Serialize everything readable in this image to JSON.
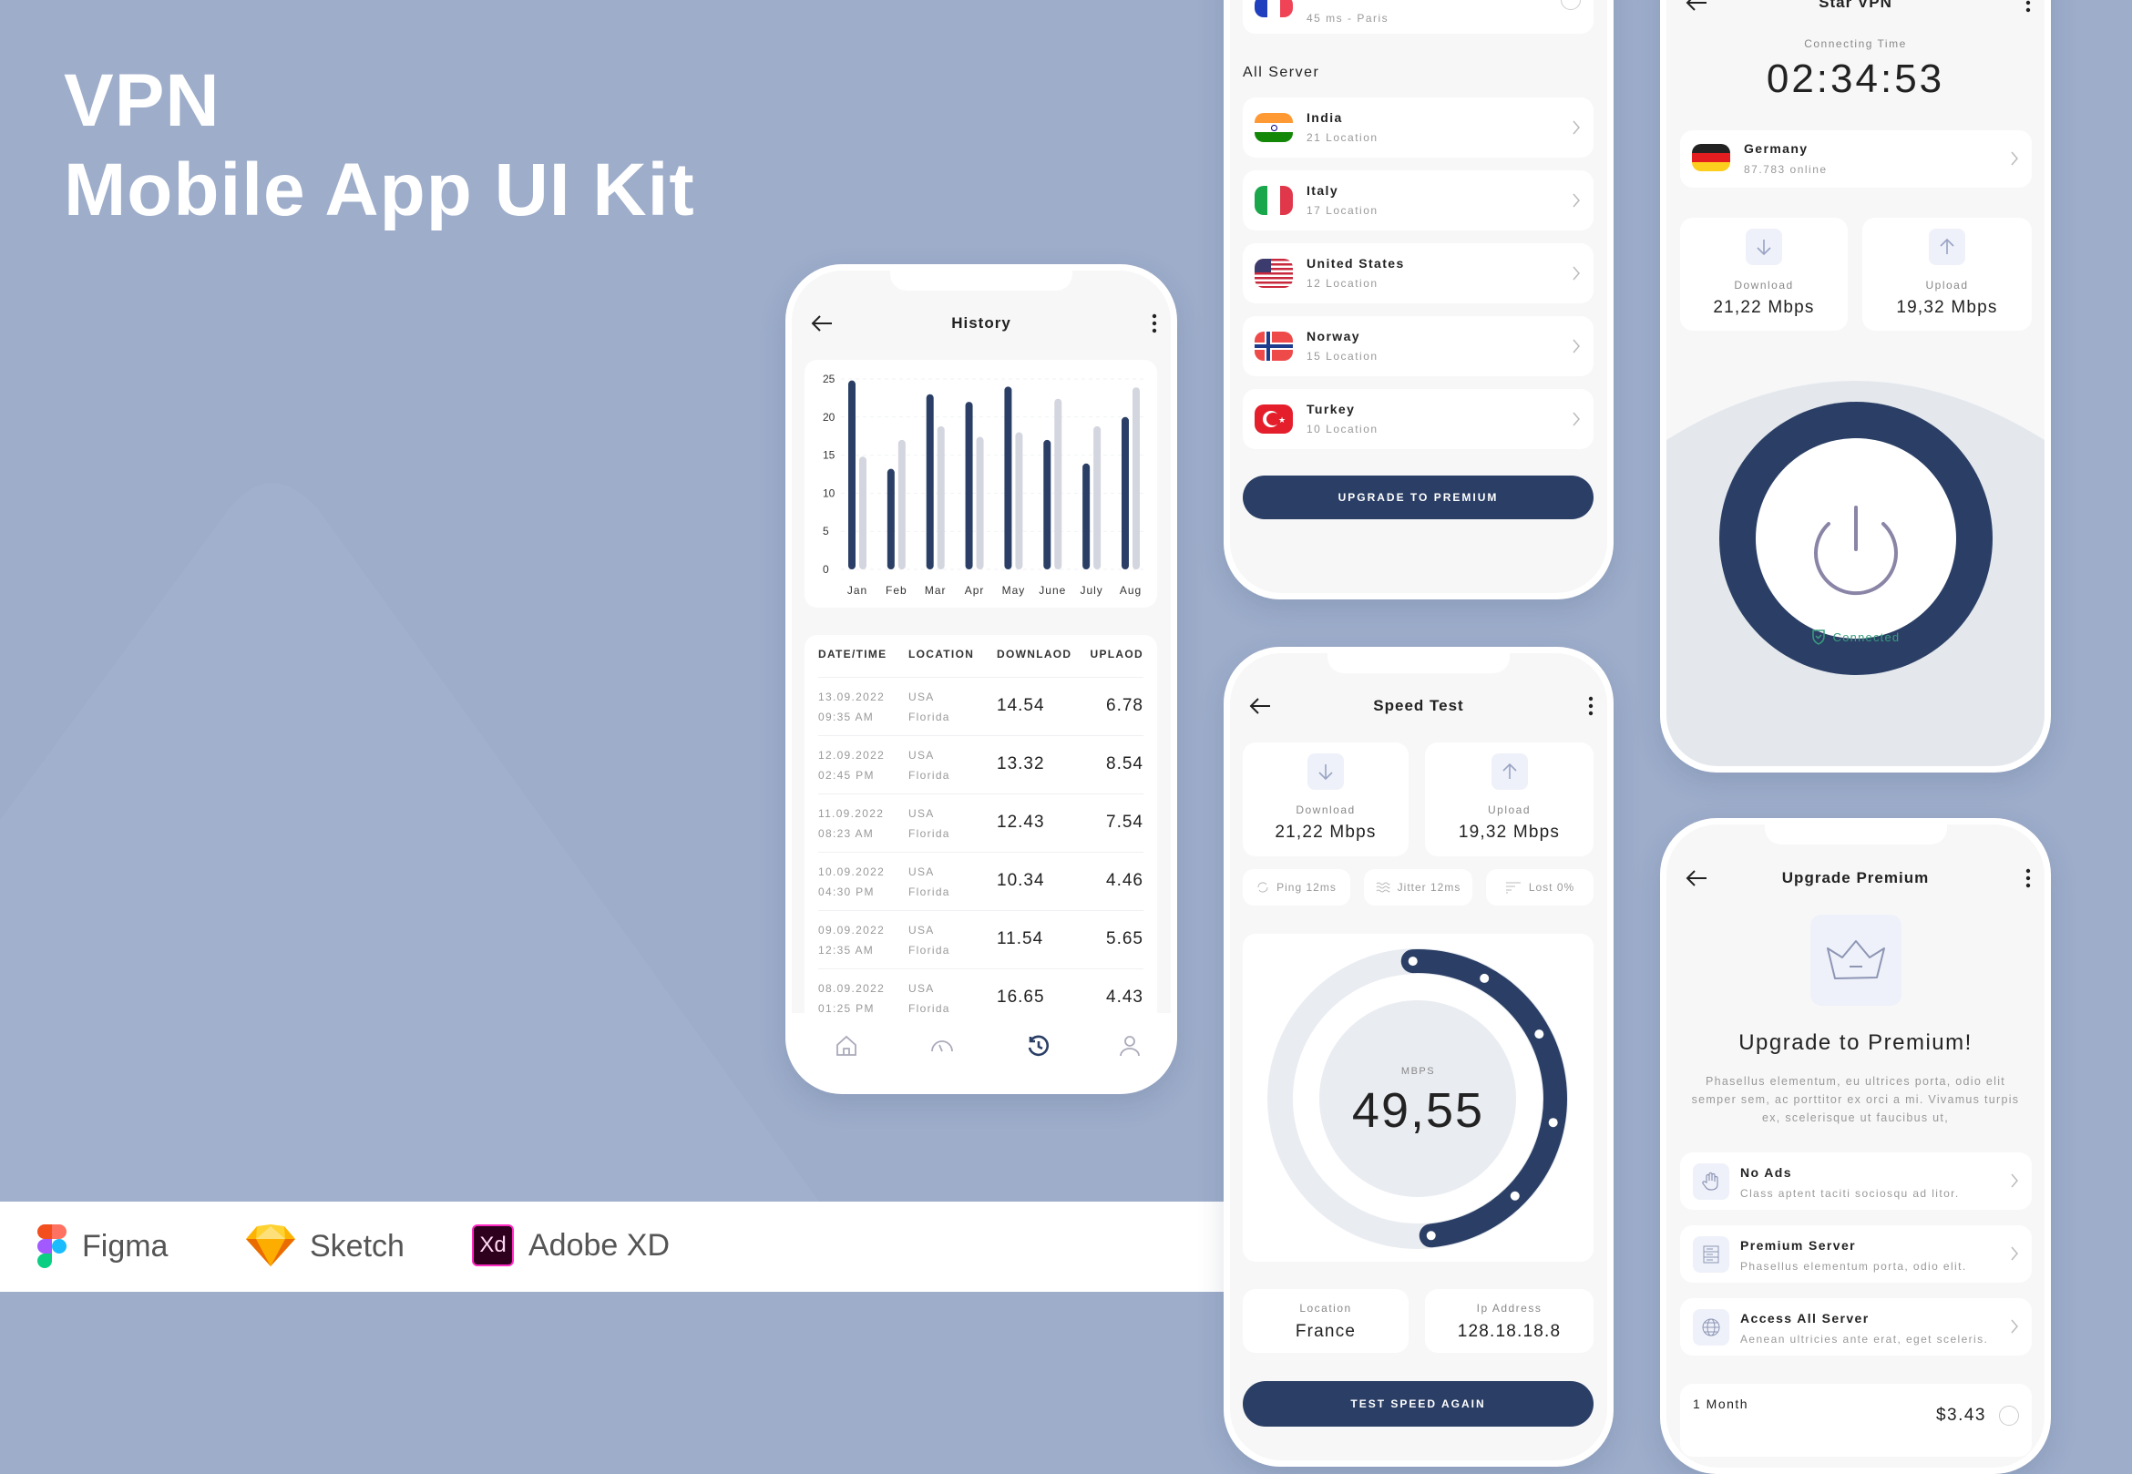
{
  "hero": {
    "line1": "VPN",
    "line2": "Mobile App UI Kit"
  },
  "tools": [
    {
      "label": "Figma",
      "icon": "figma-logo"
    },
    {
      "label": "Sketch",
      "icon": "sketch-logo"
    },
    {
      "label": "Adobe XD",
      "icon": "adobe-xd-logo",
      "logo_text": "Xd"
    }
  ],
  "colors": {
    "background": "#9dadca",
    "navy": "#2b3f66",
    "bar_light": "#d3d6df",
    "connected": "#3a9d7f",
    "ring": "#e9ecf1"
  },
  "history": {
    "title": "History",
    "table": {
      "headers": [
        "DATE/TIME",
        "LOCATION",
        "DOWNLAOD",
        "UPLAOD"
      ],
      "rows": [
        {
          "date": "13.09.2022",
          "time": "09:35 AM",
          "country": "USA",
          "city": "Florida",
          "download": "14.54",
          "upload": "6.78"
        },
        {
          "date": "12.09.2022",
          "time": "02:45 PM",
          "country": "USA",
          "city": "Florida",
          "download": "13.32",
          "upload": "8.54"
        },
        {
          "date": "11.09.2022",
          "time": "08:23 AM",
          "country": "USA",
          "city": "Florida",
          "download": "12.43",
          "upload": "7.54"
        },
        {
          "date": "10.09.2022",
          "time": "04:30 PM",
          "country": "USA",
          "city": "Florida",
          "download": "10.34",
          "upload": "4.46"
        },
        {
          "date": "09.09.2022",
          "time": "12:35 AM",
          "country": "USA",
          "city": "Florida",
          "download": "11.54",
          "upload": "5.65"
        },
        {
          "date": "08.09.2022",
          "time": "01:25 PM",
          "country": "USA",
          "city": "Florida",
          "download": "16.65",
          "upload": "4.43"
        }
      ]
    },
    "nav": [
      {
        "icon": "home-icon",
        "active": false
      },
      {
        "icon": "speedometer-icon",
        "active": false
      },
      {
        "icon": "history-icon",
        "active": true
      },
      {
        "icon": "profile-icon",
        "active": false
      }
    ]
  },
  "chart_data": {
    "type": "bar",
    "categories": [
      "Jan",
      "Feb",
      "Mar",
      "Apr",
      "May",
      "June",
      "July",
      "Aug"
    ],
    "series": [
      {
        "values": [
          24.8,
          13.2,
          23,
          22,
          24,
          17,
          13.9,
          20
        ],
        "color": "#2b3f66"
      },
      {
        "values": [
          14.8,
          17,
          18.8,
          17.4,
          18,
          22.4,
          18.8,
          23.9
        ],
        "color": "#d3d6df"
      }
    ],
    "yticks": [
      0,
      5,
      10,
      15,
      20,
      25
    ],
    "ylim": [
      0,
      25
    ],
    "grid": true,
    "title": "",
    "xlabel": "",
    "ylabel": ""
  },
  "servers": {
    "current": {
      "sub": "45 ms - Paris",
      "flag": "france"
    },
    "section_title": "All Server",
    "items": [
      {
        "name": "India",
        "sub": "21 Location",
        "flag": "india"
      },
      {
        "name": "Italy",
        "sub": "17 Location",
        "flag": "italy"
      },
      {
        "name": "United States",
        "sub": "12 Location",
        "flag": "usa"
      },
      {
        "name": "Norway",
        "sub": "15 Location",
        "flag": "norway"
      },
      {
        "name": "Turkey",
        "sub": "10 Location",
        "flag": "turkey"
      }
    ],
    "button": "UPGRADE TO PREMIUM"
  },
  "speed": {
    "title": "Speed Test",
    "download_label": "Download",
    "download_value": "21,22 Mbps",
    "upload_label": "Upload",
    "upload_value": "19,32 Mbps",
    "pills": [
      "Ping 12ms",
      "Jitter 12ms",
      "Lost 0%"
    ],
    "gauge_unit": "MBPS",
    "gauge_value": "49,55",
    "gauge_fill_fraction": 0.49,
    "location_label": "Location",
    "location_value": "France",
    "ip_label": "Ip Address",
    "ip_value": "128.18.18.8",
    "button": "TEST SPEED AGAIN"
  },
  "home": {
    "title": "Star VPN",
    "connecting_label": "Connecting Time",
    "connecting_time": "02:34:53",
    "server_name": "Germany",
    "server_sub": "87.783 online",
    "download_label": "Download",
    "download_value": "21,22 Mbps",
    "upload_label": "Upload",
    "upload_value": "19,32 Mbps",
    "status": "Connected"
  },
  "premium": {
    "title": "Upgrade Premium",
    "heading": "Upgrade to Premium!",
    "description": "Phasellus elementum, eu ultrices porta, odio elit semper sem, ac porttitor ex orci a mi. Vivamus turpis ex, scelerisque ut faucibus ut,",
    "features": [
      {
        "title": "No Ads",
        "sub": "Class aptent taciti sociosqu ad litor.",
        "icon": "hand-icon"
      },
      {
        "title": "Premium Server",
        "sub": "Phasellus elementum porta, odio elit.",
        "icon": "server-icon"
      },
      {
        "title": "Access All Server",
        "sub": "Aenean ultricies ante erat, eget sceleris.",
        "icon": "globe-icon"
      }
    ],
    "plan_name": "1 Month",
    "plan_price": "$3.43"
  }
}
